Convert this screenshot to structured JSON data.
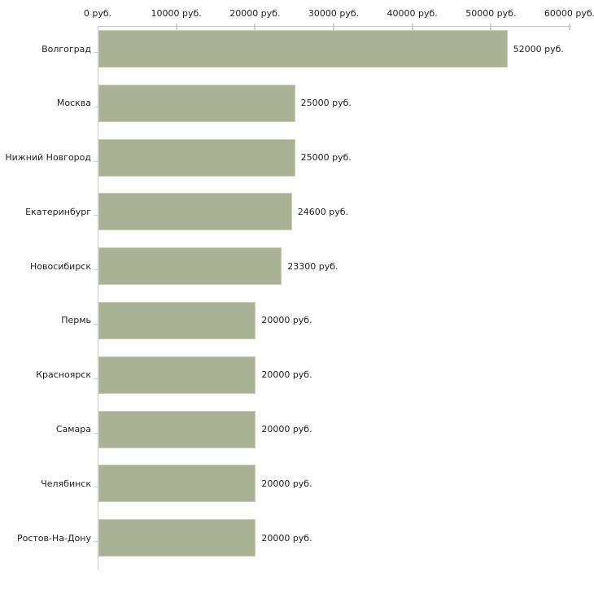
{
  "chart_data": {
    "type": "bar",
    "orientation": "horizontal",
    "title": "",
    "xlabel": "",
    "ylabel": "",
    "unit": "руб.",
    "xlim": [
      0,
      60000
    ],
    "grid": false,
    "legend": "none",
    "x_ticks": [
      {
        "value": 0,
        "label": "0 руб."
      },
      {
        "value": 10000,
        "label": "10000 руб."
      },
      {
        "value": 20000,
        "label": "20000 руб."
      },
      {
        "value": 30000,
        "label": "30000 руб."
      },
      {
        "value": 40000,
        "label": "40000 руб."
      },
      {
        "value": 50000,
        "label": "50000 руб."
      },
      {
        "value": 60000,
        "label": "60000 руб."
      }
    ],
    "categories": [
      "Волгоград",
      "Москва",
      "Нижний Новгород",
      "Екатеринбург",
      "Новосибирск",
      "Пермь",
      "Красноярск",
      "Самара",
      "Челябинск",
      "Ростов-На-Дону"
    ],
    "values": [
      52000,
      25000,
      25000,
      24600,
      23300,
      20000,
      20000,
      20000,
      20000,
      20000
    ],
    "value_labels": [
      "52000 руб.",
      "25000 руб.",
      "25000 руб.",
      "24600 руб.",
      "23300 руб.",
      "20000 руб.",
      "20000 руб.",
      "20000 руб.",
      "20000 руб.",
      "20000 руб."
    ],
    "colors": {
      "bar_fill": "#aab295",
      "bar_border": "#c9cdb6",
      "axis_line": "#c9c9c9",
      "tick_mark": "#d2d5bd",
      "text": "#222222",
      "background": "#ffffff"
    }
  }
}
